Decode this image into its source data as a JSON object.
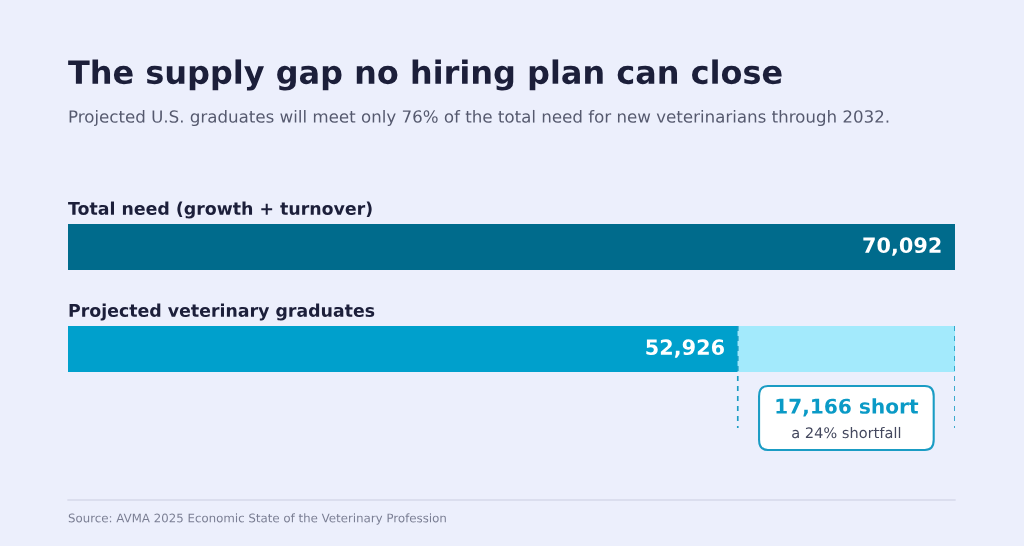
{
  "chart_data": {
    "type": "bar",
    "orientation": "horizontal",
    "stacked": true,
    "title": "The supply gap no hiring plan can close",
    "subtitle": "Projected U.S. graduates will meet only 76% of the total need for new veterinarians through 2032.",
    "categories": [
      "Total need (growth + turnover)",
      "Projected veterinary graduates"
    ],
    "series": [
      {
        "values": [
          70092,
          52926
        ],
        "colors": [
          "#006b8c",
          "#00a0cc"
        ],
        "value_labels": [
          "70,092",
          "52,926"
        ]
      },
      {
        "values": [
          null,
          17166
        ],
        "color": "#a3eafc"
      }
    ],
    "xlim": [
      0,
      70092
    ],
    "tick_labels": false,
    "legend": false,
    "ref_lines": [
      {
        "axis": "x",
        "value": 52926,
        "color": "#1a9cc4",
        "line_style": "dashed"
      },
      {
        "axis": "x",
        "value": 70092,
        "color": "#1a9cc4",
        "line_style": "dashed"
      }
    ],
    "annotations": [
      "17,166 short",
      "a 24% shortfall",
      "Source: AVMA 2025 Economic State of the Veterinary Profession"
    ]
  }
}
